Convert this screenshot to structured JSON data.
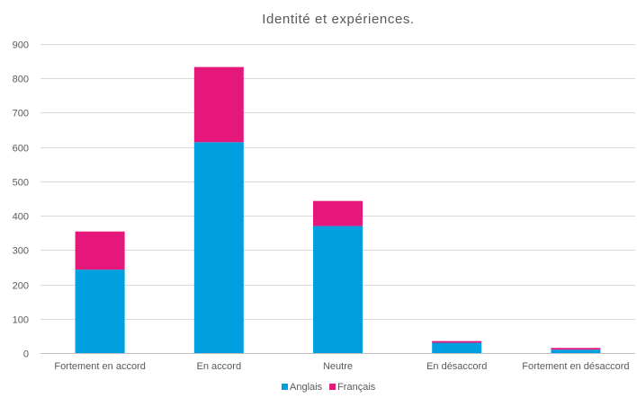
{
  "chart_data": {
    "type": "bar",
    "stacked": true,
    "title": "Identité et expériences.",
    "xlabel": "",
    "ylabel": "",
    "ylim": [
      0,
      900
    ],
    "yticks": [
      0,
      100,
      200,
      300,
      400,
      500,
      600,
      700,
      800,
      900
    ],
    "grid": true,
    "legend_position": "bottom",
    "categories": [
      "Fortement en accord",
      "En accord",
      "Neutre",
      "En désaccord",
      "Fortement en désaccord"
    ],
    "series": [
      {
        "name": "Anglais",
        "color": "#00a0e0",
        "values": [
          243,
          614,
          370,
          30,
          10
        ]
      },
      {
        "name": "Français",
        "color": "#e5177b",
        "values": [
          111,
          219,
          73,
          5,
          5
        ]
      }
    ]
  }
}
